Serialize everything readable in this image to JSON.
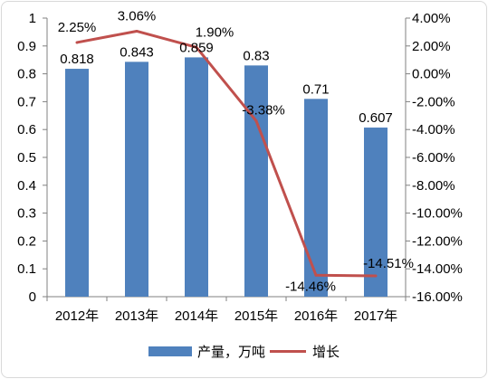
{
  "chart_data": {
    "type": "bar+line",
    "categories": [
      "2012年",
      "2013年",
      "2014年",
      "2015年",
      "2016年",
      "2017年"
    ],
    "series": [
      {
        "name": "产量，万吨",
        "type": "bar",
        "axis": "left",
        "color": "#4f81bd",
        "values": [
          0.818,
          0.843,
          0.859,
          0.83,
          0.71,
          0.607
        ],
        "labels": [
          "0.818",
          "0.843",
          "0.859",
          "0.83",
          "0.71",
          "0.607"
        ]
      },
      {
        "name": "增长",
        "type": "line",
        "axis": "right",
        "color": "#c0504d",
        "values": [
          2.25,
          3.06,
          1.9,
          -3.38,
          -14.46,
          -14.51
        ],
        "labels": [
          "2.25%",
          "3.06%",
          "1.90%",
          "-3.38%",
          "-14.46%",
          "-14.51%"
        ]
      }
    ],
    "y_left": {
      "range": [
        0,
        1
      ],
      "ticks": [
        "0",
        "0.1",
        "0.2",
        "0.3",
        "0.4",
        "0.5",
        "0.6",
        "0.7",
        "0.8",
        "0.9",
        "1"
      ]
    },
    "y_right": {
      "range": [
        -16,
        4
      ],
      "ticks": [
        "-16.00%",
        "-14.00%",
        "-12.00%",
        "-10.00%",
        "-8.00%",
        "-6.00%",
        "-4.00%",
        "-2.00%",
        "0.00%",
        "2.00%",
        "4.00%"
      ]
    },
    "grid": false,
    "legend_position": "bottom"
  }
}
